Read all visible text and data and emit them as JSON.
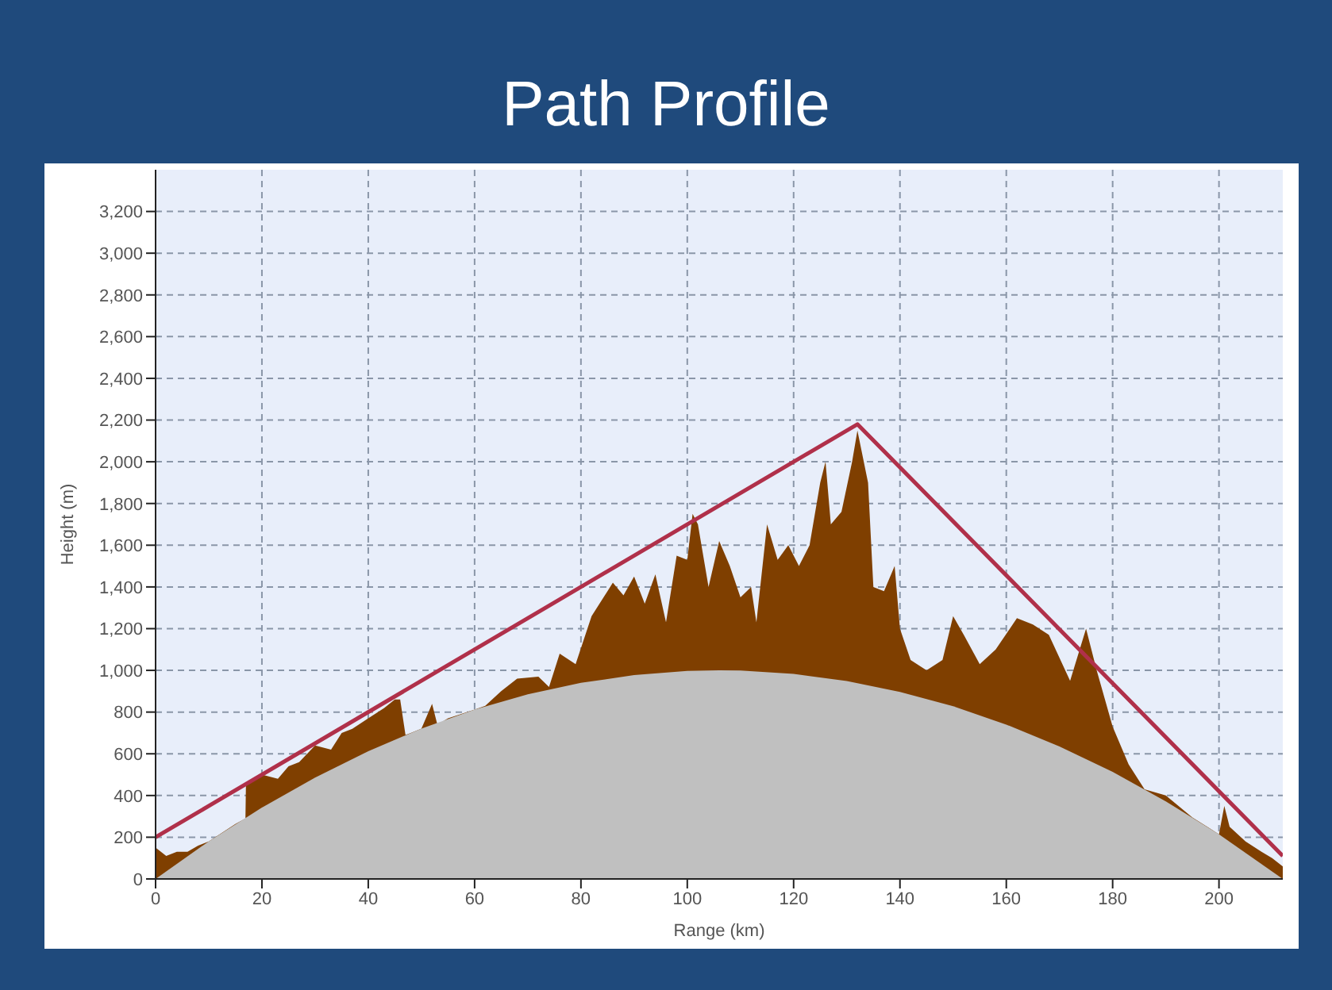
{
  "chart_data": {
    "type": "area",
    "title": "Path Profile",
    "xlabel": "Range (km)",
    "ylabel": "Height (m)",
    "xlim": [
      0,
      212
    ],
    "xticks": [
      0,
      20,
      40,
      60,
      80,
      100,
      120,
      140,
      160,
      180,
      200
    ],
    "ylim": [
      0,
      3400
    ],
    "yticks": [
      0,
      200,
      400,
      600,
      800,
      {
        "value": 1000,
        "label": "1,000"
      },
      {
        "value": 1200,
        "label": "1,200"
      },
      {
        "value": 1400,
        "label": "1,400"
      },
      {
        "value": 1600,
        "label": "1,600"
      },
      {
        "value": 1800,
        "label": "1,800"
      },
      {
        "value": 2000,
        "label": "2,000"
      },
      {
        "value": 2200,
        "label": "2,200"
      },
      {
        "value": 2400,
        "label": "2,400"
      },
      {
        "value": 2600,
        "label": "2,600"
      },
      {
        "value": 2800,
        "label": "2,800"
      },
      {
        "value": 3000,
        "label": "3,000"
      },
      {
        "value": 3200,
        "label": "3,200"
      }
    ],
    "grid": true,
    "series": [
      {
        "color": "#7f3f00",
        "x": [
          0,
          2,
          4,
          6,
          8,
          10,
          15,
          16.9,
          17,
          20,
          23,
          25,
          27,
          30,
          33,
          35,
          37,
          40,
          43,
          45,
          46,
          47,
          48,
          50,
          52,
          53,
          55,
          60,
          62,
          65,
          68,
          72,
          74,
          76,
          79,
          82,
          86,
          88,
          90,
          92,
          94,
          96,
          98,
          100,
          101,
          102,
          104,
          106,
          108,
          110,
          112,
          113,
          115,
          117,
          119,
          121,
          123,
          125,
          126,
          127,
          129,
          131,
          132,
          134,
          135,
          137,
          139,
          140,
          142,
          145,
          148,
          150,
          152,
          155,
          158,
          162,
          165,
          168,
          172,
          175,
          177,
          180,
          183,
          186,
          190,
          195,
          200,
          201,
          202,
          205,
          208,
          210,
          212
        ],
        "values": [
          150,
          110,
          130,
          130,
          160,
          180,
          263,
          290,
          460,
          500,
          480,
          540,
          560,
          640,
          620,
          700,
          720,
          770,
          820,
          860,
          860,
          690,
          700,
          721,
          840,
          740,
          770,
          812,
          830,
          900,
          960,
          970,
          920,
          1080,
          1030,
          1260,
          1420,
          1360,
          1450,
          1320,
          1460,
          1230,
          1550,
          1530,
          1750,
          1700,
          1400,
          1620,
          1500,
          1350,
          1400,
          1230,
          1700,
          1530,
          1600,
          1500,
          1600,
          1900,
          2000,
          1700,
          1760,
          2000,
          2150,
          1900,
          1400,
          1380,
          1500,
          1200,
          1050,
          1000,
          1050,
          1260,
          1170,
          1030,
          1100,
          1250,
          1220,
          1170,
          950,
          1200,
          1000,
          730,
          550,
          430,
          400,
          295,
          214,
          350,
          250,
          180,
          130,
          100,
          60
        ]
      },
      {
        "color": "#c0c0c0",
        "x": [
          0,
          10,
          20,
          30,
          40,
          50,
          60,
          70,
          80,
          90,
          100,
          106,
          110,
          120,
          130,
          140,
          150,
          160,
          170,
          180,
          190,
          200,
          212
        ],
        "values": [
          0,
          180,
          342,
          486,
          612,
          721,
          812,
          885,
          940,
          977,
          997,
          1000,
          999,
          983,
          949,
          897,
          828,
          740,
          635,
          513,
          372,
          214,
          0
        ]
      },
      {
        "type": "line",
        "color": "#b0304a",
        "x": [
          0,
          132,
          212
        ],
        "values": [
          200,
          2180,
          110
        ]
      }
    ]
  }
}
